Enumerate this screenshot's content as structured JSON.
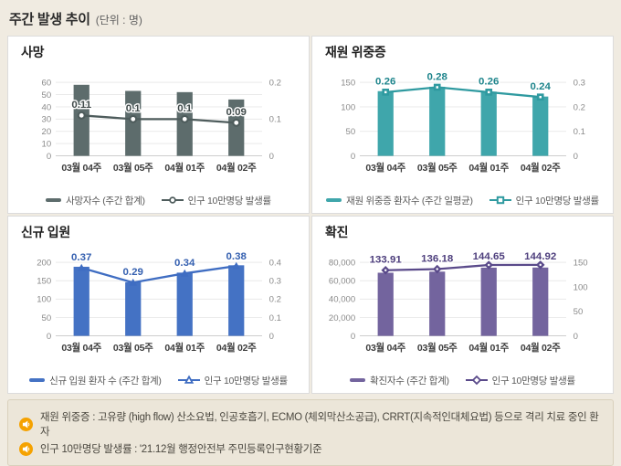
{
  "page": {
    "title": "주간 발생 추이",
    "title_unit": "(단위 : 명)"
  },
  "colors": {
    "page_background": "#f0ebe1",
    "panel_background": "#ffffff",
    "panel_border": "#dcdcdc",
    "notes_background": "#ece6d9",
    "notes_border": "#d9d0bc",
    "note_icon": "#f5a200",
    "deaths": "#5d6c6c",
    "severe": "#3fa6ab",
    "admissions": "#4472c4",
    "confirmed": "#73649e"
  },
  "notes": [
    {
      "icon": "speaker-icon",
      "text": "재원 위중증 : 고유량 (high flow) 산소요법, 인공호흡기, ECMO (체외막산소공급), CRRT(지속적인대체요법) 등으로 격리 치료 중인 환자"
    },
    {
      "icon": "speaker-icon",
      "text": "인구 10만명당 발생률 : '21.12월 행정안전부 주민등록인구현황기준"
    }
  ],
  "chart_data": [
    {
      "type": "bar",
      "id": "deaths",
      "title": "사망",
      "categories": [
        "03월 04주",
        "03월 05주",
        "04월 01주",
        "04월 02주"
      ],
      "bar_series": {
        "name": "사망자수 (주간 합계)",
        "values": [
          58,
          53,
          52,
          46
        ],
        "color": "#5d6c6c"
      },
      "line_series": {
        "name": "인구 10만명당 발생률",
        "values": [
          0.11,
          0.1,
          0.1,
          0.09
        ],
        "labels": [
          "0.11",
          "0.1",
          "0.1",
          "0.09"
        ],
        "color": "#4e5c5c",
        "label_color": "#414b4b",
        "marker": "circle"
      },
      "left_axis": {
        "min": 0,
        "max": 60,
        "ticks": [
          [
            0,
            "0"
          ],
          [
            10,
            "10"
          ],
          [
            20,
            "20"
          ],
          [
            30,
            "30"
          ],
          [
            40,
            "40"
          ],
          [
            50,
            "50"
          ],
          [
            60,
            "60"
          ]
        ]
      },
      "right_axis": {
        "min": 0,
        "max": 0.2,
        "ticks": [
          [
            0,
            "0"
          ],
          [
            0.1,
            "0.1"
          ],
          [
            0.2,
            "0.2"
          ]
        ]
      },
      "grid": true,
      "legend_position": "bottom"
    },
    {
      "type": "bar",
      "id": "severe",
      "title": "재원 위중증",
      "categories": [
        "03월 04주",
        "03월 05주",
        "04월 01주",
        "04월 02주"
      ],
      "bar_series": {
        "name": "재원 위중증 환자수 (주간 일평균)",
        "values": [
          132,
          141,
          131,
          121
        ],
        "color": "#3fa6ab"
      },
      "line_series": {
        "name": "인구 10만명당 발생률",
        "values": [
          0.26,
          0.28,
          0.26,
          0.24
        ],
        "labels": [
          "0.26",
          "0.28",
          "0.26",
          "0.24"
        ],
        "color": "#2f9aa0",
        "label_color": "#1f858c",
        "marker": "square"
      },
      "left_axis": {
        "min": 0,
        "max": 150,
        "ticks": [
          [
            0,
            "0"
          ],
          [
            50,
            "50"
          ],
          [
            100,
            "100"
          ],
          [
            150,
            "150"
          ]
        ]
      },
      "right_axis": {
        "min": 0,
        "max": 0.3,
        "ticks": [
          [
            0,
            "0"
          ],
          [
            0.1,
            "0.1"
          ],
          [
            0.2,
            "0.2"
          ],
          [
            0.3,
            "0.3"
          ]
        ]
      },
      "grid": true,
      "legend_position": "bottom"
    },
    {
      "type": "bar",
      "id": "admissions",
      "title": "신규 입원",
      "categories": [
        "03월 04주",
        "03월 05주",
        "04월 01주",
        "04월 02주"
      ],
      "bar_series": {
        "name": "신규 입원 환자 수 (주간 합계)",
        "values": [
          188,
          146,
          172,
          192
        ],
        "color": "#4472c4"
      },
      "line_series": {
        "name": "인구 10만명당 발생률",
        "values": [
          0.37,
          0.29,
          0.34,
          0.38
        ],
        "labels": [
          "0.37",
          "0.29",
          "0.34",
          "0.38"
        ],
        "color": "#3f6dc2",
        "label_color": "#3560b0",
        "marker": "triangle"
      },
      "left_axis": {
        "min": 0,
        "max": 200,
        "ticks": [
          [
            0,
            "0"
          ],
          [
            50,
            "50"
          ],
          [
            100,
            "100"
          ],
          [
            150,
            "150"
          ],
          [
            200,
            "200"
          ]
        ]
      },
      "right_axis": {
        "min": 0,
        "max": 0.4,
        "ticks": [
          [
            0,
            "0"
          ],
          [
            0.1,
            "0.1"
          ],
          [
            0.2,
            "0.2"
          ],
          [
            0.3,
            "0.3"
          ],
          [
            0.4,
            "0.4"
          ]
        ]
      },
      "grid": true,
      "legend_position": "bottom"
    },
    {
      "type": "bar",
      "id": "confirmed",
      "title": "확진",
      "categories": [
        "03월 04주",
        "03월 05주",
        "04월 01주",
        "04월 02주"
      ],
      "bar_series": {
        "name": "확진자수 (주간 합계)",
        "values": [
          68700,
          69900,
          74200,
          74350
        ],
        "color": "#73649e"
      },
      "line_series": {
        "name": "인구 10만명당 발생률",
        "values": [
          133.91,
          136.18,
          144.65,
          144.92
        ],
        "labels": [
          "133.91",
          "136.18",
          "144.65",
          "144.92"
        ],
        "color": "#5a4a8a",
        "label_color": "#4e3f7d",
        "marker": "diamond"
      },
      "left_axis": {
        "min": 0,
        "max": 80000,
        "ticks": [
          [
            0,
            "0"
          ],
          [
            20000,
            "20,000"
          ],
          [
            40000,
            "40,000"
          ],
          [
            60000,
            "60,000"
          ],
          [
            80000,
            "80,000"
          ]
        ]
      },
      "right_axis": {
        "min": 0,
        "max": 150,
        "ticks": [
          [
            0,
            "0"
          ],
          [
            50,
            "50"
          ],
          [
            100,
            "100"
          ],
          [
            150,
            "150"
          ]
        ]
      },
      "grid": true,
      "legend_position": "bottom"
    }
  ]
}
